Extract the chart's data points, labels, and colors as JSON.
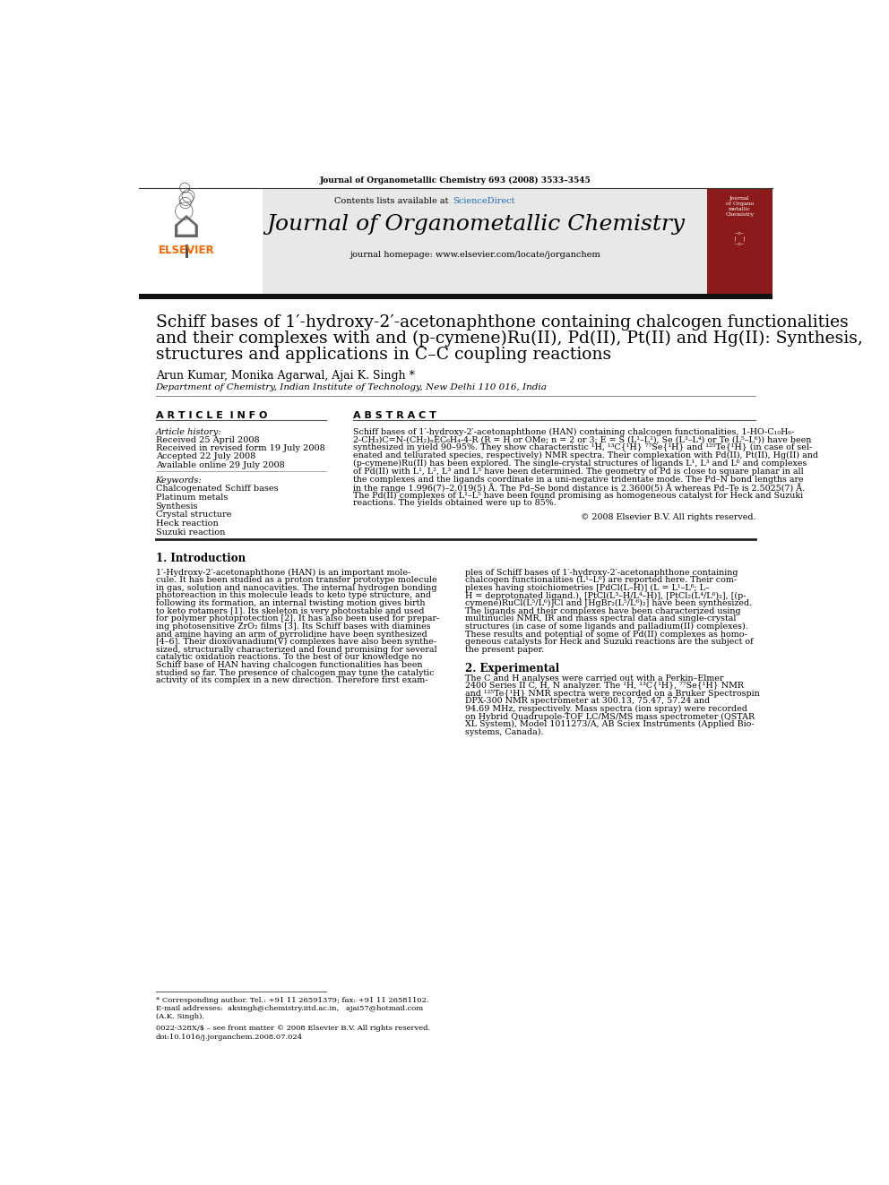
{
  "journal_ref": "Journal of Organometallic Chemistry 693 (2008) 3533–3545",
  "journal_name": "Journal of Organometallic Chemistry",
  "contents_line": "Contents lists available at ScienceDirect",
  "sciencedirect_color": "#1a6bb5",
  "homepage": "journal homepage: www.elsevier.com/locate/jorganchem",
  "elsevier_color": "#ff6600",
  "title_line1": "Schiff bases of 1′-hydroxy-2′-acetonaphthone containing chalcogen functionalities",
  "title_line2": "and their complexes with and (p-cymene)Ru(II), Pd(II), Pt(II) and Hg(II): Synthesis,",
  "title_line3": "structures and applications in C–C coupling reactions",
  "authors": "Arun Kumar, Monika Agarwal, Ajai K. Singh *",
  "affiliation": "Department of Chemistry, Indian Institute of Technology, New Delhi 110 016, India",
  "article_info_header": "A R T I C L E  I N F O",
  "abstract_header": "A B S T R A C T",
  "article_history_label": "Article history:",
  "received1": "Received 25 April 2008",
  "received2": "Received in revised form 19 July 2008",
  "accepted": "Accepted 22 July 2008",
  "available": "Available online 29 July 2008",
  "keywords_label": "Keywords:",
  "keywords": [
    "Chalcogenated Schiff bases",
    "Platinum metals",
    "Synthesis",
    "Crystal structure",
    "Heck reaction",
    "Suzuki reaction"
  ],
  "abstract_lines": [
    "Schiff bases of 1′-hydroxy-2′-acetonaphthone (HAN) containing chalcogen functionalities, 1-HO-C₁₀H₆-",
    "2-CH₃)C=N-(CH₂)ₙEC₆H₄-4-R (R = H or OMe; n = 2 or 3; E = S (L¹–L²), Se (L³–L⁴) or Te (L⁵–L⁶)) have been",
    "synthesized in yield 90–95%. They show characteristic ¹H, ¹³C{¹H} ⁷⁷Se{¹H} and ¹²⁵Te{¹H} (in case of sel-",
    "enated and tellurated species, respectively) NMR spectra. Their complexation with Pd(II), Pt(II), Hg(II) and",
    "(p-cymene)Ru(II) has been explored. The single-crystal structures of ligands L¹, L³ and L⁶ and complexes",
    "of Pd(II) with L¹, L², L³ and L⁵ have been determined. The geometry of Pd is close to square planar in all",
    "the complexes and the ligands coordinate in a uni-negative tridentate mode. The Pd–N bond lengths are",
    "in the range 1.996(7)–2.019(5) Å. The Pd–Se bond distance is 2.3600(5) Å whereas Pd–Te is 2.5025(7) Å.",
    "The Pd(II) complexes of L¹–L⁵ have been found promising as homogeneous catalyst for Heck and Suzuki",
    "reactions. The yields obtained were up to 85%."
  ],
  "copyright": "© 2008 Elsevier B.V. All rights reserved.",
  "intro_header": "1. Introduction",
  "intro_lines_left": [
    "1′-Hydroxy-2′-acetonaphthone (HAN) is an important mole-",
    "cule. It has been studied as a proton transfer prototype molecule",
    "in gas, solution and nanocavities. The internal hydrogen bonding",
    "photoreaction in this molecule leads to keto type structure, and",
    "following its formation, an internal twisting motion gives birth",
    "to keto rotamers [1]. Its skeleton is very photostable and used",
    "for polymer photoprotection [2]. It has also been used for prepar-",
    "ing photosensitive ZrO₂ films [3]. Its Schiff bases with diamines",
    "and amine having an arm of pyrrolidine have been synthesized",
    "[4–6]. Their dioxovanadium(V) complexes have also been synthe-",
    "sized, structurally characterized and found promising for several",
    "catalytic oxidation reactions. To the best of our knowledge no",
    "Schiff base of HAN having chalcogen functionalities has been",
    "studied so far. The presence of chalcogen may tune the catalytic",
    "activity of its complex in a new direction. Therefore first exam-"
  ],
  "intro_lines_right": [
    "ples of Schiff bases of 1′-hydroxy-2′-acetonaphthone containing",
    "chalcogen functionalities (L¹–L⁶) are reported here. Their com-",
    "plexes having stoichiometries [PdCl(L–H)] (L = L¹–L⁶; L–",
    "H = deprotonated ligand.), [PtCl(L³–H/L⁴–H)], [PtCl₂(L⁴/L⁶)₂], [(p-",
    "cymene)RuCl(L⁵/L⁶)]Cl and [HgBr₂(L⁵/L⁶)₂] have been synthesized.",
    "The ligands and their complexes have been characterized using",
    "multinuclei NMR, IR and mass spectral data and single-crystal",
    "structures (in case of some ligands and palladium(II) complexes).",
    "These results and potential of some of Pd(II) complexes as homo-",
    "geneous catalysts for Heck and Suzuki reactions are the subject of",
    "the present paper."
  ],
  "exp_header": "2. Experimental",
  "exp_lines": [
    "The C and H analyses were carried out with a Perkin–Elmer",
    "2400 Series II C, H, N analyzer. The ¹H, ¹³C{¹H}, ⁷⁷Se{¹H} NMR",
    "and ¹²⁵Te{¹H} NMR spectra were recorded on a Bruker Spectrospin",
    "DPX-300 NMR spectrometer at 300.13, 75.47, 57.24 and",
    "94.69 MHz, respectively. Mass spectra (ion spray) were recorded",
    "on Hybrid Quadrupole-TOF LC/MS/MS mass spectrometer (QSTAR",
    "XL System), Model 1011273/A, AB Sciex Instruments (Applied Bio-",
    "systems, Canada)."
  ],
  "footnote_star": "* Corresponding author. Tel.: +91 11 26591379; fax: +91 11 26581102.",
  "footnote_email_label": "E-mail addresses:",
  "footnote_email1": "aksingh@chemistry.iitd.ac.in,",
  "footnote_email2": "ajai57@hotmail.com",
  "footnote_name": "(A.K. Singh).",
  "footnote_issn": "0022-328X/$ – see front matter © 2008 Elsevier B.V. All rights reserved.",
  "footnote_doi": "doi:10.1016/j.jorganchem.2008.07.024",
  "bg_color": "#ffffff",
  "header_bg": "#e8e8e8",
  "black_bar_color": "#111111",
  "line_color": "#555555"
}
